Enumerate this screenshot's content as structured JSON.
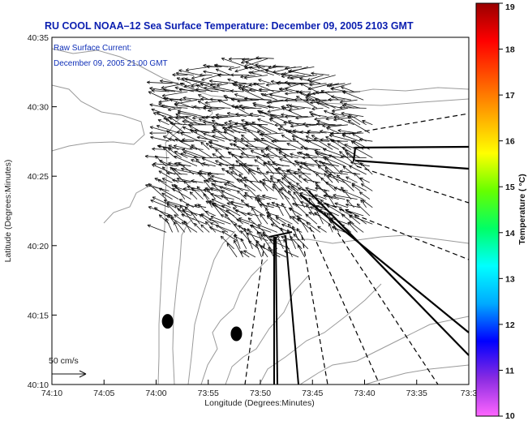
{
  "title": "RU COOL   NOAA–12  Sea Surface Temperature:  December 09, 2005 2103 GMT",
  "annotation": {
    "line1": "Raw Surface Current:",
    "line2": "December 09, 2005 21:00 GMT"
  },
  "scale_label": "50 cm/s",
  "x_axis": {
    "label": "Longitude (Degrees:Minutes)",
    "ticks": [
      "74:10",
      "74:05",
      "74:00",
      "73:55",
      "73:50",
      "73:45",
      "73:40",
      "73:35",
      "73:3"
    ]
  },
  "y_axis": {
    "label": "Latitude (Degrees:Minutes)",
    "ticks": [
      "40:35",
      "40:30",
      "40:25",
      "40:20",
      "40:15",
      "40:10"
    ]
  },
  "colorbar": {
    "label": "Temperature ( °C)",
    "ticks": [
      "19",
      "18",
      "17",
      "16",
      "15",
      "14",
      "13",
      "12",
      "11",
      "10"
    ],
    "range": [
      10,
      19
    ],
    "colors": [
      "#ff66ff",
      "#8a2be2",
      "#0000ff",
      "#00aaff",
      "#00ffff",
      "#00ff66",
      "#66ff00",
      "#ffff00",
      "#ffaa00",
      "#ff5500",
      "#ff0000",
      "#990000"
    ]
  },
  "map": {
    "lon_range": [
      -74.1667,
      -73.5
    ],
    "lat_range": [
      40.1667,
      40.5833
    ],
    "land_color": "#ffffff",
    "contour_color": "#9a9a9a",
    "arrow_color": "#111111",
    "buoys": [
      {
        "lon": -73.9817,
        "lat": 40.2425
      },
      {
        "lon": -73.8717,
        "lat": 40.2275
      }
    ],
    "current_field": {
      "center_lon": -73.8333,
      "center_lat": 40.4333,
      "rows": 26,
      "cols": 34
    }
  }
}
